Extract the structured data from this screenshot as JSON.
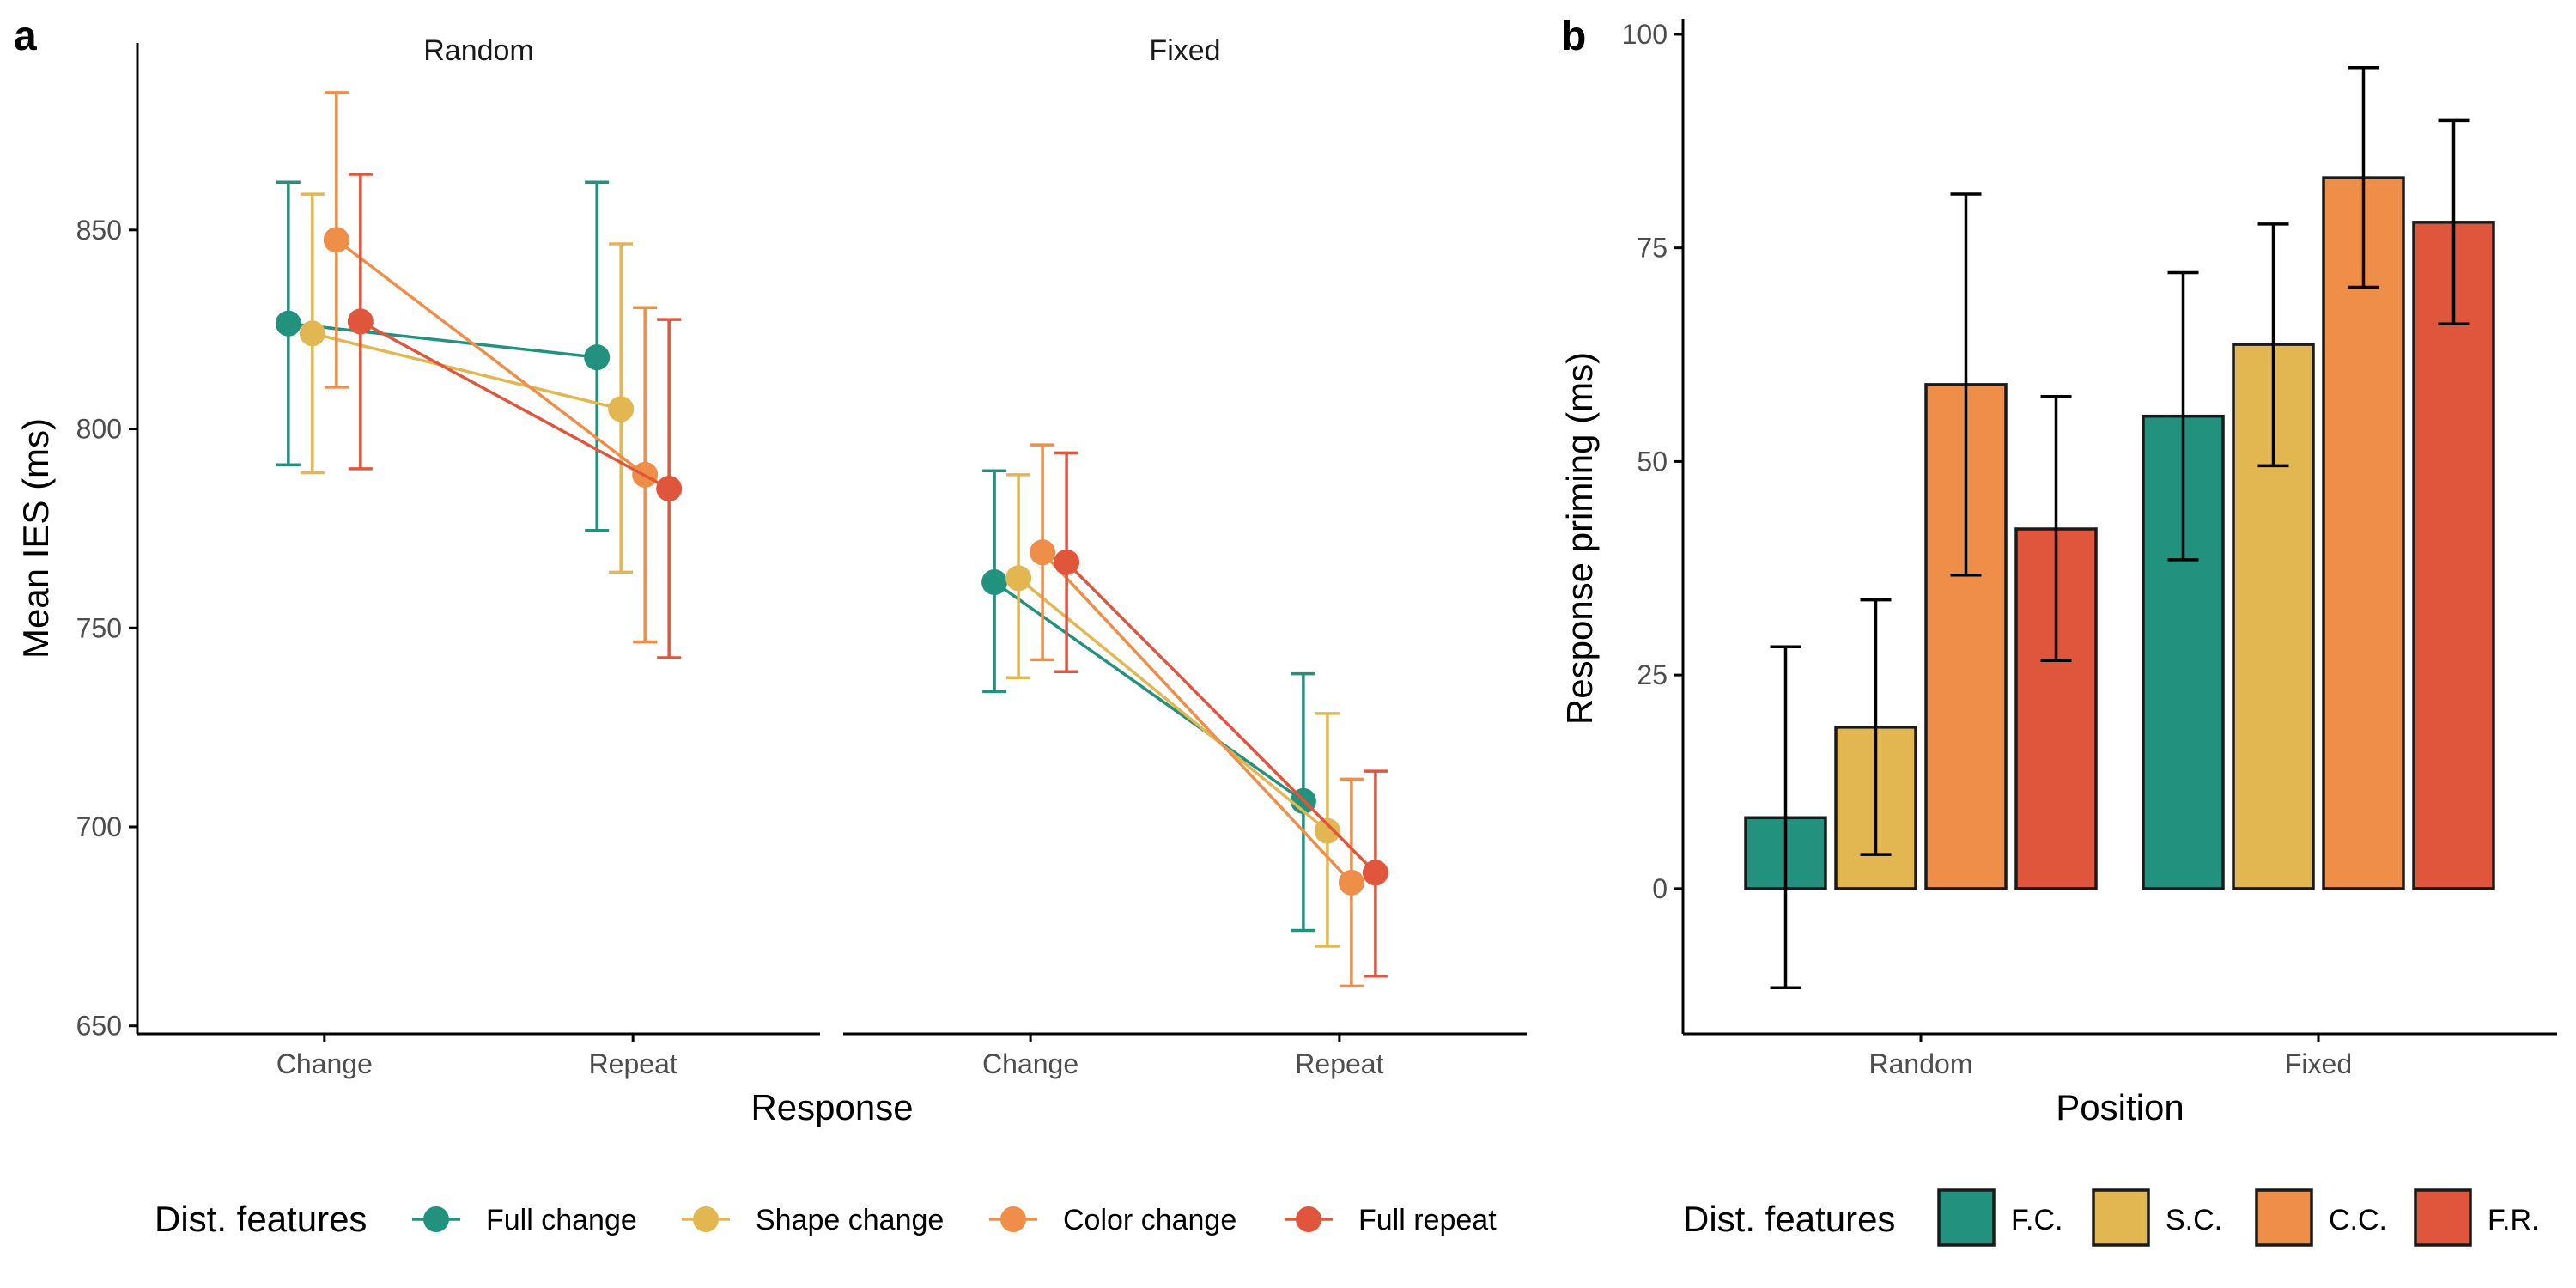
{
  "colors": {
    "full_change": "#22917E",
    "shape_change": "#E2B752",
    "color_change": "#EE8E48",
    "full_repeat": "#E0563C",
    "axis": "#000000",
    "tick_text": "#4d4d4d"
  },
  "chart_data": [
    {
      "panel": "a",
      "type": "line",
      "facets": [
        "Random",
        "Fixed"
      ],
      "categories": [
        "Change",
        "Repeat"
      ],
      "xlabel": "Response",
      "ylabel": "Mean IES (ms)",
      "ylim": [
        648,
        897
      ],
      "yticks": [
        650,
        700,
        750,
        800,
        850
      ],
      "error_bars": true,
      "series": [
        {
          "name": "Full change",
          "color_key": "full_change",
          "values": {
            "Random": [
              {
                "y": 826.5,
                "lo": 791,
                "hi": 862
              },
              {
                "y": 818,
                "lo": 774.5,
                "hi": 862
              }
            ],
            "Fixed": [
              {
                "y": 761.5,
                "lo": 734,
                "hi": 789.5
              },
              {
                "y": 706.5,
                "lo": 674,
                "hi": 738.5
              }
            ]
          }
        },
        {
          "name": "Shape change",
          "color_key": "shape_change",
          "values": {
            "Random": [
              {
                "y": 824,
                "lo": 789,
                "hi": 859
              },
              {
                "y": 805,
                "lo": 764,
                "hi": 846.5
              }
            ],
            "Fixed": [
              {
                "y": 762.5,
                "lo": 737.5,
                "hi": 788.5
              },
              {
                "y": 699,
                "lo": 670,
                "hi": 728.5
              }
            ]
          }
        },
        {
          "name": "Color change",
          "color_key": "color_change",
          "values": {
            "Random": [
              {
                "y": 847.5,
                "lo": 810.5,
                "hi": 884.5
              },
              {
                "y": 788.5,
                "lo": 746.5,
                "hi": 830.5
              }
            ],
            "Fixed": [
              {
                "y": 769,
                "lo": 742,
                "hi": 796
              },
              {
                "y": 686,
                "lo": 660,
                "hi": 712
              }
            ]
          }
        },
        {
          "name": "Full repeat",
          "color_key": "full_repeat",
          "values": {
            "Random": [
              {
                "y": 827,
                "lo": 790,
                "hi": 864
              },
              {
                "y": 785,
                "lo": 742.5,
                "hi": 827.5
              }
            ],
            "Fixed": [
              {
                "y": 766.5,
                "lo": 739,
                "hi": 794
              },
              {
                "y": 688.5,
                "lo": 662.5,
                "hi": 714
              }
            ]
          }
        }
      ],
      "legend": {
        "title": "Dist. features",
        "position": "bottom"
      }
    },
    {
      "panel": "b",
      "type": "bar",
      "categories": [
        "Random",
        "Fixed"
      ],
      "xlabel": "Position",
      "ylabel": "Response priming (ms)",
      "ylim": [
        -17,
        101
      ],
      "yticks": [
        0,
        25,
        50,
        75,
        100
      ],
      "error_bars": true,
      "series": [
        {
          "name": "F.C.",
          "color_key": "full_change",
          "values": [
            {
              "y": 8.3,
              "lo": -11.6,
              "hi": 28.3
            },
            {
              "y": 55.3,
              "lo": 38.5,
              "hi": 72.1
            }
          ]
        },
        {
          "name": "S.C.",
          "color_key": "shape_change",
          "values": [
            {
              "y": 18.9,
              "lo": 4.0,
              "hi": 33.8
            },
            {
              "y": 63.7,
              "lo": 49.5,
              "hi": 77.8
            }
          ]
        },
        {
          "name": "C.C.",
          "color_key": "color_change",
          "values": [
            {
              "y": 59.0,
              "lo": 36.7,
              "hi": 81.3
            },
            {
              "y": 83.2,
              "lo": 70.4,
              "hi": 96.1
            }
          ]
        },
        {
          "name": "F.R.",
          "color_key": "full_repeat",
          "values": [
            {
              "y": 42.1,
              "lo": 26.7,
              "hi": 57.6
            },
            {
              "y": 78.0,
              "lo": 66.1,
              "hi": 89.9
            }
          ]
        }
      ],
      "legend": {
        "title": "Dist. features",
        "position": "bottom"
      }
    }
  ]
}
